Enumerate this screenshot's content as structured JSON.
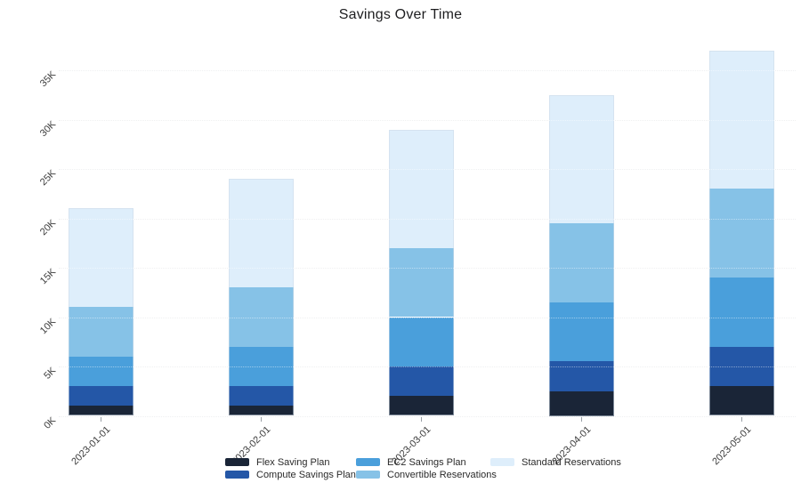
{
  "header": {
    "title": "Savings Over Time"
  },
  "chart_data": {
    "type": "bar",
    "stacked": true,
    "title": "Savings Over Time",
    "categories": [
      "2023-01-01",
      "2023-02-01",
      "2023-03-01",
      "2023-04-01",
      "2023-05-01"
    ],
    "series": [
      {
        "name": "Flex Saving Plan",
        "color": "#1a2537",
        "values": [
          1000,
          1000,
          2000,
          2500,
          3000
        ]
      },
      {
        "name": "Compute Savings Plan",
        "color": "#2457a7",
        "values": [
          2000,
          2000,
          3000,
          3000,
          4000
        ]
      },
      {
        "name": "EC2 Savings Plan",
        "color": "#4a9fdb",
        "values": [
          3000,
          4000,
          5000,
          6000,
          7000
        ]
      },
      {
        "name": "Convertible Reservations",
        "color": "#86c2e7",
        "values": [
          5000,
          6000,
          7000,
          8000,
          9000
        ]
      },
      {
        "name": "Standard Reservations",
        "color": "#deeefb",
        "values": [
          10000,
          11000,
          12000,
          13000,
          14000
        ]
      }
    ],
    "stack_totals": [
      21000,
      24000,
      29000,
      32500,
      37000
    ],
    "xlabel": "",
    "ylabel": "",
    "yaxis": {
      "tick_values": [
        0,
        5000,
        10000,
        15000,
        20000,
        25000,
        30000,
        35000
      ],
      "tick_labels": [
        "0K",
        "5K",
        "10K",
        "15K",
        "20K",
        "25K",
        "30K",
        "35K"
      ],
      "range": [
        0,
        35000
      ]
    },
    "x_tick_angle_deg": -45,
    "y_tick_angle_deg": -45,
    "grid": {
      "show": true,
      "style": "dotted"
    },
    "legend": {
      "position": "bottom",
      "rows": 2,
      "order": "column-major"
    }
  }
}
